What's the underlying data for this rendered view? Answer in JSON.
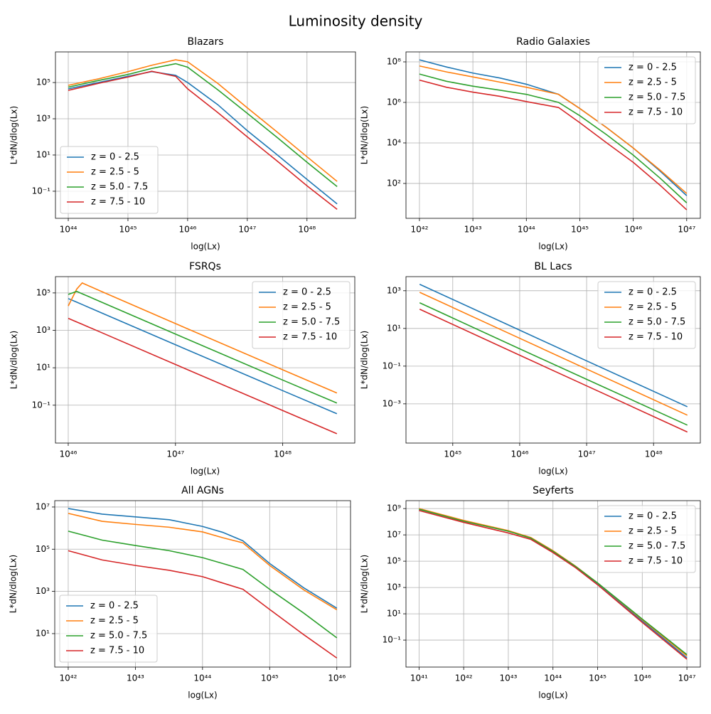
{
  "title": "Luminosity density",
  "chart_data": [
    {
      "type": "line",
      "title": "Blazars",
      "xlabel": "log(Lx)",
      "ylabel": "L*dN/dlog(Lx)",
      "xscale": "log",
      "yscale": "log",
      "grid": true,
      "legend": "lower left",
      "xlim": [
        6.1e+43,
        6.5e+48
      ],
      "ylim": [
        0.0032,
        4900000.0
      ],
      "xticks": [
        {
          "value": 1e+44,
          "label": "10⁴⁴"
        },
        {
          "value": 1e+45,
          "label": "10⁴⁵"
        },
        {
          "value": 1e+46,
          "label": "10⁴⁶"
        },
        {
          "value": 1e+47,
          "label": "10⁴⁷"
        },
        {
          "value": 1e+48,
          "label": "10⁴⁸"
        }
      ],
      "yticks": [
        {
          "value": 0.1,
          "label": "10⁻¹"
        },
        {
          "value": 10,
          "label": "10¹"
        },
        {
          "value": 1000,
          "label": "10³"
        },
        {
          "value": 100000,
          "label": "10⁵"
        }
      ],
      "x": [
        1e+44,
        3.2e+44,
        1e+45,
        2.5e+45,
        6.3e+45,
        1e+46,
        3.2e+46,
        1e+47,
        3.2e+47,
        1e+48,
        3.2e+48
      ],
      "series": [
        {
          "name": "z = 0 - 2.5",
          "color": "#1f77b4",
          "values": [
            45000.0,
            100000.0,
            220000.0,
            400000.0,
            250000.0,
            100000.0,
            6000.0,
            220,
            10,
            0.45,
            0.02
          ]
        },
        {
          "name": "z = 2.5 - 5",
          "color": "#ff7f0e",
          "values": [
            70000.0,
            160000.0,
            400000.0,
            900000.0,
            1800000.0,
            1400000.0,
            90000.0,
            4000.0,
            180,
            8,
            0.35
          ]
        },
        {
          "name": "z = 5.0 - 7.5",
          "color": "#2ca02c",
          "values": [
            56000.0,
            130000.0,
            280000.0,
            600000.0,
            1100000.0,
            700000.0,
            40000.0,
            2000.0,
            90,
            4,
            0.18
          ]
        },
        {
          "name": "z = 7.5 - 10",
          "color": "#d62728",
          "values": [
            37000.0,
            90000.0,
            200000.0,
            420000.0,
            220000.0,
            45000.0,
            2200.0,
            100,
            4.5,
            0.2,
            0.01
          ]
        }
      ]
    },
    {
      "type": "line",
      "title": "Radio Galaxies",
      "xlabel": "log(Lx)",
      "ylabel": "L*dN/dlog(Lx)",
      "xscale": "log",
      "yscale": "log",
      "grid": true,
      "legend": "upper right",
      "xlim": [
        5.6e+41,
        1.8e+47
      ],
      "ylim": [
        1.9,
        310000000.0
      ],
      "xticks": [
        {
          "value": 1e+42,
          "label": "10⁴²"
        },
        {
          "value": 1e+43,
          "label": "10⁴³"
        },
        {
          "value": 1e+44,
          "label": "10⁴⁴"
        },
        {
          "value": 1e+45,
          "label": "10⁴⁵"
        },
        {
          "value": 1e+46,
          "label": "10⁴⁶"
        },
        {
          "value": 1e+47,
          "label": "10⁴⁷"
        }
      ],
      "yticks": [
        {
          "value": 100,
          "label": "10²"
        },
        {
          "value": 10000,
          "label": "10⁴"
        },
        {
          "value": 1000000,
          "label": "10⁶"
        },
        {
          "value": 100000000,
          "label": "10⁸"
        }
      ],
      "x": [
        1e+42,
        3.2e+42,
        1e+43,
        3.2e+43,
        1e+44,
        4e+44,
        1e+45,
        3.2e+45,
        1e+46,
        3.2e+46,
        1e+47
      ],
      "series": [
        {
          "name": "z = 0 - 2.5",
          "color": "#1f77b4",
          "values": [
            126000000.0,
            56000000.0,
            28000000.0,
            16000000.0,
            7900000.0,
            2500000.0,
            500000.0,
            56000.0,
            5600.0,
            400,
            25
          ]
        },
        {
          "name": "z = 2.5 - 5",
          "color": "#ff7f0e",
          "values": [
            63000000.0,
            32000000.0,
            18000000.0,
            10000000.0,
            5600000.0,
            2500000.0,
            500000.0,
            56000.0,
            5600.0,
            450,
            32
          ]
        },
        {
          "name": "z = 5.0 - 7.5",
          "color": "#2ca02c",
          "values": [
            25000000.0,
            11000000.0,
            6300000.0,
            4000000.0,
            2500000.0,
            1000000.0,
            220000.0,
            25000.0,
            2500.0,
            180,
            11
          ]
        },
        {
          "name": "z = 7.5 - 10",
          "color": "#d62728",
          "values": [
            12600000.0,
            5600000.0,
            3200000.0,
            2000000.0,
            1100000.0,
            560000.0,
            100000.0,
            10000.0,
            1100.0,
            80,
            5
          ]
        }
      ]
    },
    {
      "type": "line",
      "title": "FSRQs",
      "xlabel": "log(Lx)",
      "ylabel": "L*dN/dlog(Lx)",
      "xscale": "log",
      "yscale": "log",
      "grid": true,
      "legend": "upper right",
      "xlim": [
        7.6e+45,
        4.7e+48
      ],
      "ylim": [
        0.00095,
        740000.0
      ],
      "xticks": [
        {
          "value": 1e+46,
          "label": "10⁴⁶"
        },
        {
          "value": 1e+47,
          "label": "10⁴⁷"
        },
        {
          "value": 1e+48,
          "label": "10⁴⁸"
        }
      ],
      "yticks": [
        {
          "value": 0.1,
          "label": "10⁻¹"
        },
        {
          "value": 10,
          "label": "10¹"
        },
        {
          "value": 1000,
          "label": "10³"
        },
        {
          "value": 100000,
          "label": "10⁵"
        }
      ],
      "x": [
        1e+46,
        1.2e+46,
        1.35e+46,
        2e+46,
        1e+47,
        1e+48,
        3.2e+48
      ],
      "series": [
        {
          "name": "z = 0 - 2.5",
          "color": "#1f77b4",
          "values": [
            50000.0,
            32000.0,
            24000.0,
            9000.0,
            170,
            0.6,
            0.035
          ]
        },
        {
          "name": "z = 2.5 - 5",
          "color": "#ff7f0e",
          "values": [
            20000.0,
            160000.0,
            340000.0,
            126000.0,
            2300.0,
            7.8,
            0.45
          ]
        },
        {
          "name": "z = 5.0 - 7.5",
          "color": "#2ca02c",
          "values": [
            83000.0,
            120000.0,
            90000.0,
            34000.0,
            630,
            2.2,
            0.13
          ]
        },
        {
          "name": "z = 7.5 - 10",
          "color": "#d62728",
          "values": [
            4400.0,
            2800.0,
            2100.0,
            800,
            15,
            0.052,
            0.003
          ]
        }
      ]
    },
    {
      "type": "line",
      "title": "BL Lacs",
      "xlabel": "log(Lx)",
      "ylabel": "L*dN/dlog(Lx)",
      "xscale": "log",
      "yscale": "log",
      "grid": true,
      "legend": "upper right",
      "xlim": [
        2e+44,
        5e+48
      ],
      "ylim": [
        8.3e-06,
        5600.0
      ],
      "xticks": [
        {
          "value": 1e+45,
          "label": "10⁴⁵"
        },
        {
          "value": 1e+46,
          "label": "10⁴⁶"
        },
        {
          "value": 1e+47,
          "label": "10⁴⁷"
        },
        {
          "value": 1e+48,
          "label": "10⁴⁸"
        }
      ],
      "yticks": [
        {
          "value": 0.001,
          "label": "10⁻³"
        },
        {
          "value": 0.1,
          "label": "10⁻¹"
        },
        {
          "value": 10,
          "label": "10¹"
        },
        {
          "value": 1000,
          "label": "10³"
        }
      ],
      "x": [
        3.2e+44,
        1e+46,
        1e+47,
        3.2e+48
      ],
      "series": [
        {
          "name": "z = 0 - 2.5",
          "color": "#1f77b4",
          "values": [
            2200.0,
            8.1,
            0.19,
            0.0007
          ]
        },
        {
          "name": "z = 2.5 - 5",
          "color": "#ff7f0e",
          "values": [
            830,
            3,
            0.07,
            0.00025
          ]
        },
        {
          "name": "z = 5.0 - 7.5",
          "color": "#2ca02c",
          "values": [
            230,
            0.83,
            0.02,
            7.4e-05
          ]
        },
        {
          "name": "z = 7.5 - 10",
          "color": "#d62728",
          "values": [
            105,
            0.38,
            0.009,
            3.2e-05
          ]
        }
      ]
    },
    {
      "type": "line",
      "title": "All AGNs",
      "xlabel": "log(Lx)",
      "ylabel": "L*dN/dlog(Lx)",
      "xscale": "log",
      "yscale": "log",
      "grid": true,
      "legend": "lower left",
      "xlim": [
        6.3e+41,
        1.6e+46
      ],
      "ylim": [
        0.26,
        20000000.0
      ],
      "xticks": [
        {
          "value": 1e+42,
          "label": "10⁴²"
        },
        {
          "value": 1e+43,
          "label": "10⁴³"
        },
        {
          "value": 1e+44,
          "label": "10⁴⁴"
        },
        {
          "value": 1e+45,
          "label": "10⁴⁵"
        },
        {
          "value": 1e+46,
          "label": "10⁴⁶"
        }
      ],
      "yticks": [
        {
          "value": 10,
          "label": "10¹"
        },
        {
          "value": 1000,
          "label": "10³"
        },
        {
          "value": 100000,
          "label": "10⁵"
        },
        {
          "value": 10000000,
          "label": "10⁷"
        }
      ],
      "x": [
        1e+42,
        3.2e+42,
        1e+43,
        3.2e+43,
        1e+44,
        2e+44,
        4e+44,
        1e+45,
        3.2e+45,
        1e+46
      ],
      "series": [
        {
          "name": "z = 0 - 2.5",
          "color": "#1f77b4",
          "values": [
            8500000.0,
            4600000.0,
            3400000.0,
            2500000.0,
            1200000.0,
            630000.0,
            250000.0,
            21000.0,
            1500.0,
            160
          ]
        },
        {
          "name": "z = 2.5 - 5",
          "color": "#ff7f0e",
          "values": [
            5000000.0,
            2100000.0,
            1500000.0,
            1100000.0,
            660000.0,
            350000.0,
            200000.0,
            17000.0,
            1200.0,
            135
          ]
        },
        {
          "name": "z = 5.0 - 7.5",
          "color": "#2ca02c",
          "values": [
            720000.0,
            270000.0,
            150000.0,
            85000.0,
            40000.0,
            21000.0,
            11000.0,
            1260.0,
            95,
            6.3
          ]
        },
        {
          "name": "z = 7.5 - 10",
          "color": "#d62728",
          "values": [
            85000.0,
            31000.0,
            17000.0,
            10000.0,
            5000.0,
            2500.0,
            1260.0,
            140,
            9,
            0.7
          ]
        }
      ]
    },
    {
      "type": "line",
      "title": "Seyferts",
      "xlabel": "log(Lx)",
      "ylabel": "L*dN/dlog(Lx)",
      "xscale": "log",
      "yscale": "log",
      "grid": true,
      "legend": "upper right",
      "xlim": [
        5.1e+40,
        2e+47
      ],
      "ylim": [
        0.00089,
        4000000000.0
      ],
      "xticks": [
        {
          "value": 1e+41,
          "label": "10⁴¹"
        },
        {
          "value": 1e+42,
          "label": "10⁴²"
        },
        {
          "value": 1e+43,
          "label": "10⁴³"
        },
        {
          "value": 1e+44,
          "label": "10⁴⁴"
        },
        {
          "value": 1e+45,
          "label": "10⁴⁵"
        },
        {
          "value": 1e+46,
          "label": "10⁴⁶"
        },
        {
          "value": 1e+47,
          "label": "10⁴⁷"
        }
      ],
      "yticks": [
        {
          "value": 0.1,
          "label": "10⁻¹"
        },
        {
          "value": 10,
          "label": "10¹"
        },
        {
          "value": 1000,
          "label": "10³"
        },
        {
          "value": 100000,
          "label": "10⁵"
        },
        {
          "value": 10000000,
          "label": "10⁷"
        },
        {
          "value": 1000000000,
          "label": "10⁹"
        }
      ],
      "x": [
        1e+41,
        1e+42,
        1e+43,
        3.2e+43,
        1e+44,
        3.2e+44,
        1e+45,
        1e+46,
        1e+47
      ],
      "series": [
        {
          "name": "z = 0 - 2.5",
          "color": "#1f77b4",
          "values": [
            890000000.0,
            110000000.0,
            20000000.0,
            5600000.0,
            520000.0,
            35000.0,
            2000.0,
            2.8,
            0.0045
          ]
        },
        {
          "name": "z = 2.5 - 5",
          "color": "#ff7f0e",
          "values": [
            1000000000.0,
            126000000.0,
            21000000.0,
            6300000.0,
            630000.0,
            42000.0,
            2200.0,
            3.5,
            0.0063
          ]
        },
        {
          "name": "z = 5.0 - 7.5",
          "color": "#2ca02c",
          "values": [
            890000000.0,
            110000000.0,
            19000000.0,
            5600000.0,
            560000.0,
            40000.0,
            2200.0,
            4,
            0.0079
          ]
        },
        {
          "name": "z = 7.5 - 10",
          "color": "#d62728",
          "values": [
            710000000.0,
            89000000.0,
            14000000.0,
            4500000.0,
            450000.0,
            32000.0,
            1600.0,
            2.2,
            0.0035
          ]
        }
      ]
    }
  ]
}
